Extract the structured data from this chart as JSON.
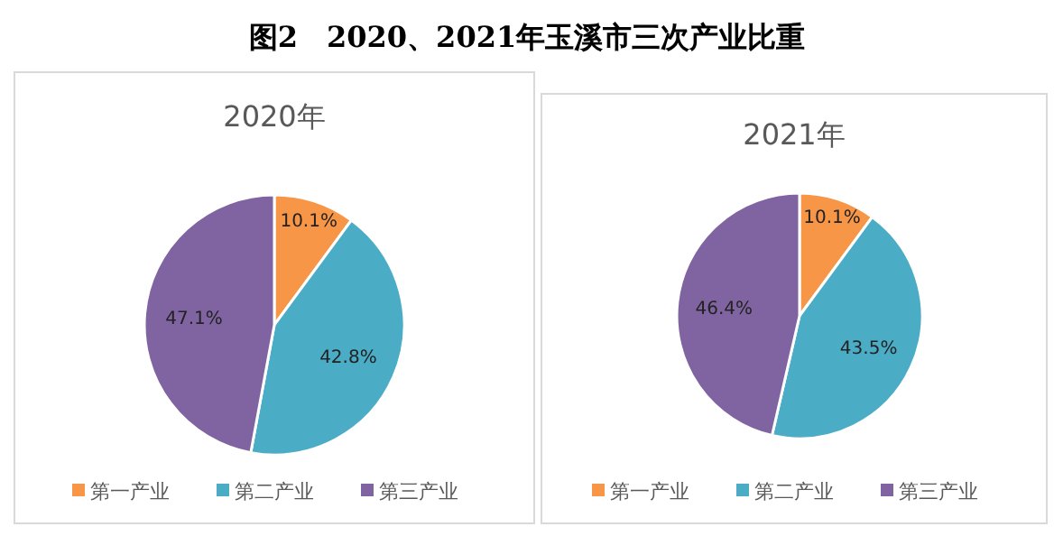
{
  "chart_data": [
    {
      "type": "pie",
      "title": "2020年",
      "annotations": [
        "图2　2020、2021年玉溪市三次产业比重"
      ],
      "categories": [
        "第一产业",
        "第二产业",
        "第三产业"
      ],
      "values": [
        10.1,
        42.8,
        47.1
      ],
      "colors": [
        "#f79646",
        "#4bacc6",
        "#8064a2"
      ],
      "value_labels": [
        "10.1%",
        "42.8%",
        "47.1%"
      ],
      "legend": "bottom"
    },
    {
      "type": "pie",
      "title": "2021年",
      "categories": [
        "第一产业",
        "第二产业",
        "第三产业"
      ],
      "values": [
        10.1,
        43.5,
        46.4
      ],
      "colors": [
        "#f79646",
        "#4bacc6",
        "#8064a2"
      ],
      "value_labels": [
        "10.1%",
        "43.5%",
        "46.4%"
      ],
      "legend": "bottom"
    }
  ]
}
